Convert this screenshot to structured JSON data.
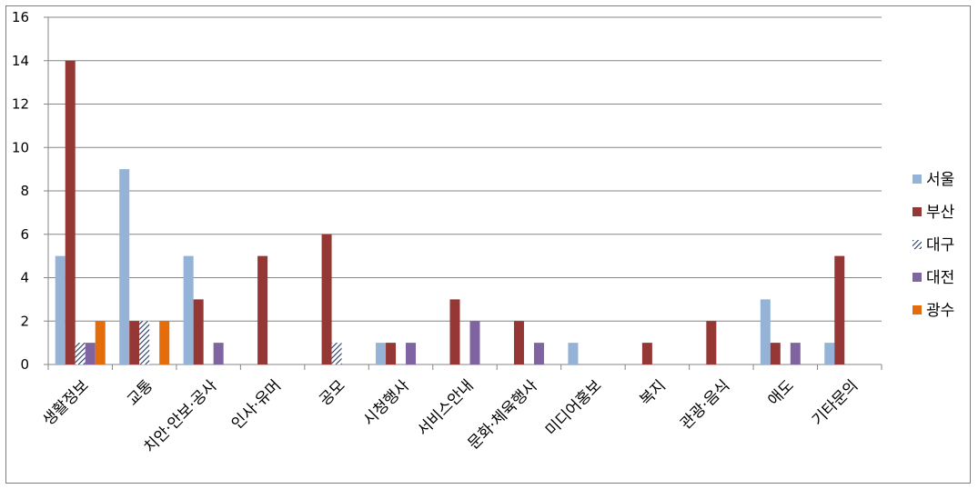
{
  "chart_data": {
    "type": "bar",
    "categories": [
      "생활정보",
      "교통",
      "치안·안보·공사",
      "인사·유머",
      "공모",
      "시청행사",
      "서비스안내",
      "문화·체육행사",
      "미디어홍보",
      "복지",
      "관광·음식",
      "애도",
      "기타문의"
    ],
    "series": [
      {
        "name": "서울",
        "color": "#95b3d7",
        "pattern": "solid",
        "values": [
          5,
          9,
          5,
          0,
          0,
          1,
          0,
          0,
          1,
          0,
          0,
          3,
          1
        ]
      },
      {
        "name": "부산",
        "color": "#953735",
        "pattern": "solid",
        "values": [
          14,
          2,
          3,
          5,
          6,
          1,
          3,
          2,
          0,
          1,
          2,
          1,
          5
        ]
      },
      {
        "name": "대구",
        "color": "#1f3864",
        "pattern": "hatch",
        "values": [
          1,
          2,
          0,
          0,
          1,
          0,
          0,
          0,
          0,
          0,
          0,
          0,
          0
        ]
      },
      {
        "name": "대전",
        "color": "#8064a2",
        "pattern": "solid",
        "values": [
          1,
          0,
          1,
          0,
          0,
          1,
          2,
          1,
          0,
          0,
          0,
          1,
          0
        ]
      },
      {
        "name": "광수",
        "color": "#e46c0a",
        "pattern": "solid",
        "values": [
          2,
          2,
          0,
          0,
          0,
          0,
          0,
          0,
          0,
          0,
          0,
          0,
          0
        ]
      }
    ],
    "ylim": [
      0,
      16
    ],
    "yticks": [
      0,
      2,
      4,
      6,
      8,
      10,
      12,
      14,
      16
    ],
    "grid": true,
    "legend": "right"
  }
}
